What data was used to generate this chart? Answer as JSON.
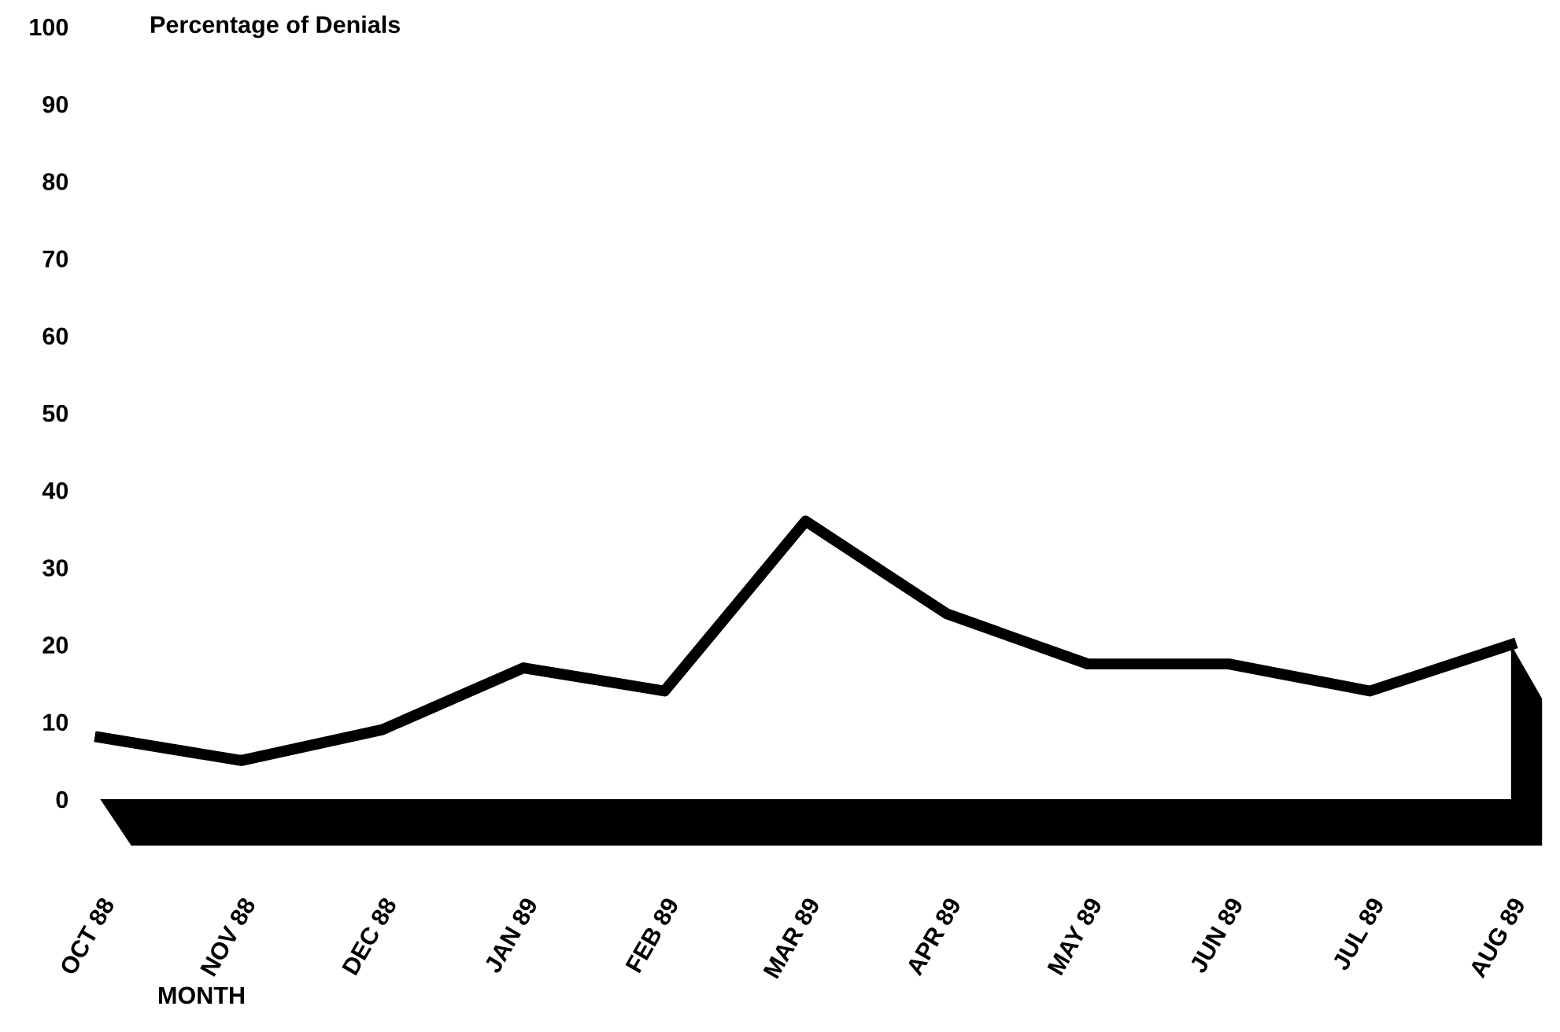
{
  "chart_data": {
    "type": "line",
    "title": "Percentage of Denials",
    "xlabel": "MONTH",
    "categories": [
      "OCT 88",
      "NOV 88",
      "DEC 88",
      "JAN 89",
      "FEB 89",
      "MAR 89",
      "APR 89",
      "MAY 89",
      "JUN 89",
      "JUL 89",
      "AUG 89"
    ],
    "series": [
      {
        "color": "#000000",
        "values": [
          8,
          5,
          9,
          17,
          14,
          36,
          24,
          17.5,
          17.5,
          14,
          20
        ]
      }
    ],
    "ylim": [
      0,
      100
    ],
    "yticks": [
      0,
      10,
      20,
      30,
      40,
      50,
      60,
      70,
      80,
      90,
      100
    ],
    "grid": false,
    "legend": false,
    "marker": "none",
    "line_style": "solid"
  }
}
